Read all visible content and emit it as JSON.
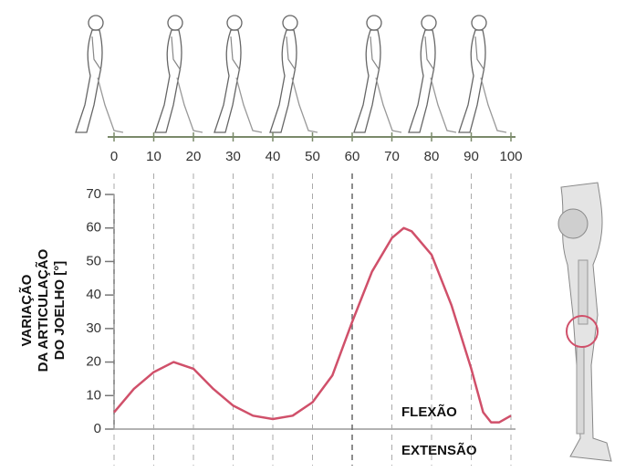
{
  "chart_data": {
    "type": "line",
    "ylabel": [
      "VARIAÇÃO",
      "DA ARTICULAÇÃO",
      "DO JOELHO [°]"
    ],
    "annotations": [
      "FLEXÃO",
      "EXTENSÃO"
    ],
    "series": [
      {
        "color": "#d0506a",
        "x": [
          0,
          5,
          10,
          15,
          20,
          25,
          30,
          35,
          40,
          45,
          50,
          55,
          60,
          62,
          65,
          70,
          73,
          75,
          80,
          85,
          90,
          93,
          95,
          97,
          100
        ],
        "values": [
          5,
          12,
          17,
          20,
          18,
          12,
          7,
          4,
          3,
          4,
          8,
          16,
          32,
          38,
          47,
          57,
          60,
          59,
          52,
          37,
          18,
          5,
          2,
          2,
          4
        ]
      }
    ],
    "xlim": [
      0,
      100
    ],
    "xticks": [
      0,
      10,
      20,
      30,
      40,
      50,
      60,
      70,
      80,
      90,
      100
    ],
    "ylim": [
      0,
      70
    ],
    "yticks": [
      0,
      10,
      20,
      30,
      40,
      50,
      60,
      70
    ],
    "grid": true
  }
}
